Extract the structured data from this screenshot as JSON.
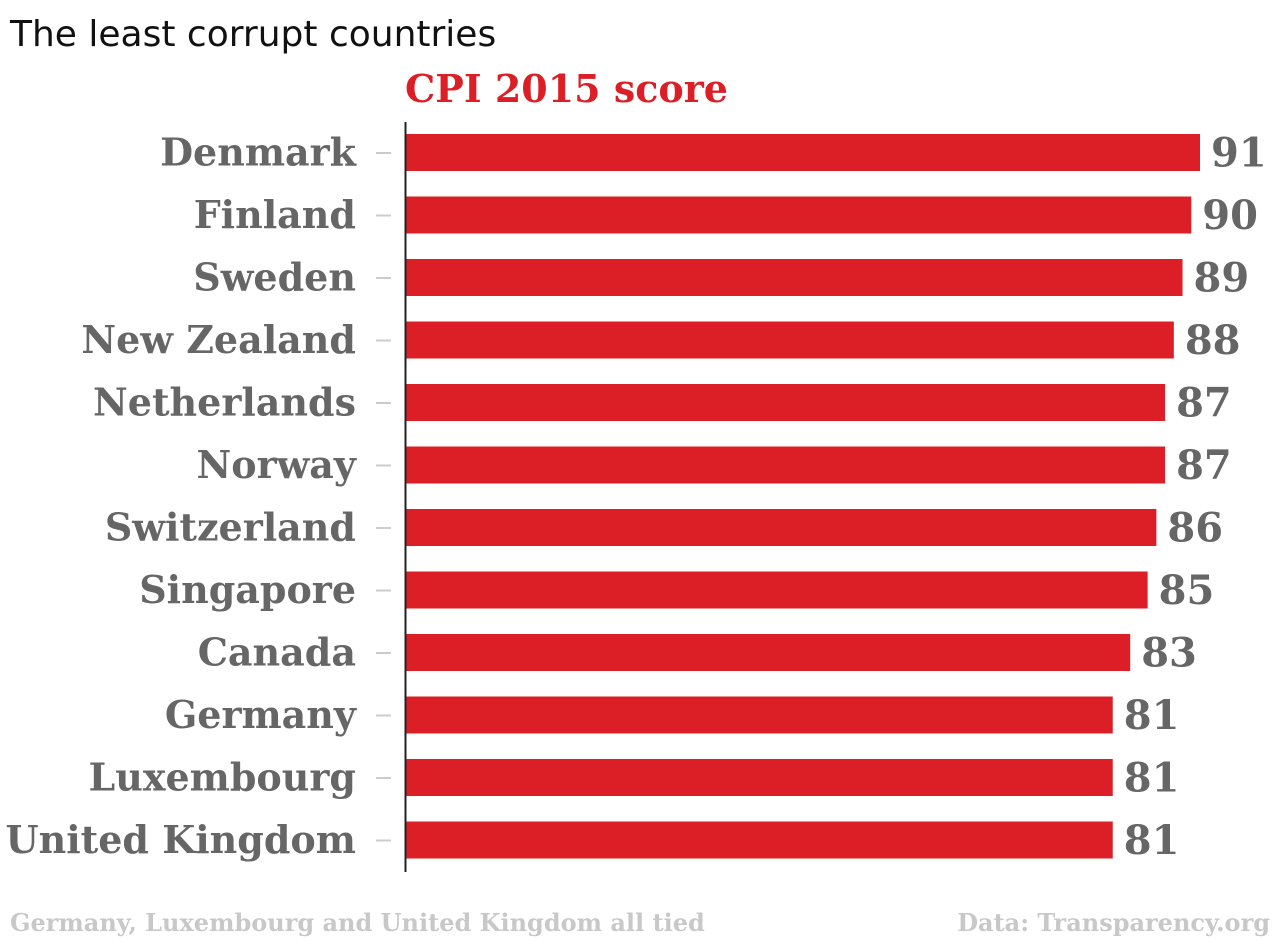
{
  "page": {
    "title": "The least corrupt countries",
    "footnote": "Germany, Luxembourg and United Kingdom all tied",
    "source": "Data: Transparency.org"
  },
  "colors": {
    "bar": "#dc1f26",
    "label": "#666666",
    "title": "#111111",
    "series_title": "#dc1f26",
    "footer": "#c8c8c8",
    "axis": "#222222",
    "tick": "#cccccc"
  },
  "chart_data": {
    "type": "bar",
    "orientation": "horizontal",
    "title": "The least corrupt countries",
    "series_title": "CPI 2015 score",
    "categories": [
      "Denmark",
      "Finland",
      "Sweden",
      "New Zealand",
      "Netherlands",
      "Norway",
      "Switzerland",
      "Singapore",
      "Canada",
      "Germany",
      "Luxembourg",
      "United Kingdom"
    ],
    "values": [
      91,
      90,
      89,
      88,
      87,
      87,
      86,
      85,
      83,
      81,
      81,
      81
    ],
    "xlim": [
      0,
      91
    ],
    "grid": false,
    "legend": "none",
    "data_labels": true
  }
}
